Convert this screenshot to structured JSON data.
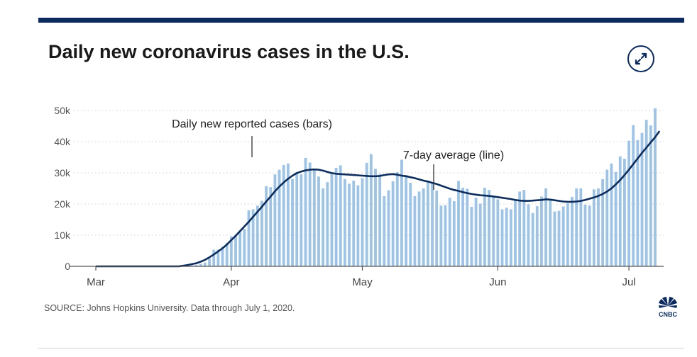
{
  "header": {
    "title": "Daily new coronavirus cases in the U.S."
  },
  "footer": {
    "source": "SOURCE: Johns Hopkins University. Data through July 1, 2020.",
    "logo_text": "CNBC"
  },
  "icons": {
    "expand": "expand-icon",
    "logo": "peacock-icon"
  },
  "colors": {
    "accent": "#0b2a5e",
    "bar": "#9dc3e6",
    "line": "#0d2d5c",
    "axis": "#555555"
  },
  "chart_data": {
    "type": "bar",
    "title": "Daily new coronavirus cases in the U.S.",
    "xlabel": "",
    "ylabel": "",
    "ylim": [
      0,
      50000
    ],
    "x_tick_labels": [
      "Mar",
      "Apr",
      "May",
      "Jun",
      "Jul"
    ],
    "y_tick_labels": [
      "0",
      "10k",
      "20k",
      "30k",
      "40k",
      "50k"
    ],
    "y_ticks": [
      0,
      10000,
      20000,
      30000,
      40000,
      50000
    ],
    "annotations": [
      "Daily new reported cases (bars)",
      "7-day average (line)"
    ],
    "series": [
      {
        "type": "bar",
        "values": [
          0,
          0,
          0,
          0,
          0,
          0,
          0,
          0,
          0,
          0,
          0,
          0,
          0,
          0,
          0,
          0,
          0,
          0,
          0,
          0,
          100,
          200,
          300,
          500,
          800,
          1200,
          2500,
          5300,
          5400,
          6300,
          7500,
          9600,
          9900,
          11000,
          12000,
          18000,
          18300,
          19500,
          21000,
          25700,
          25400,
          29500,
          31000,
          32500,
          33000,
          28000,
          30200,
          29500,
          34800,
          33300,
          31000,
          28800,
          25000,
          27000,
          29700,
          31600,
          32400,
          28000,
          26500,
          27500,
          26000,
          28300,
          33200,
          36000,
          31300,
          29600,
          22500,
          24400,
          27300,
          30200,
          34200,
          29300,
          26800,
          22500,
          24000,
          25000,
          27500,
          26800,
          24300,
          19500,
          19600,
          22000,
          20900,
          27400,
          25200,
          24900,
          19100,
          22000,
          20100,
          25200,
          24500,
          22700,
          21500,
          18300,
          18800,
          18300,
          21000,
          24000,
          24500,
          19900,
          17100,
          19300,
          22400,
          25000,
          21600,
          17600,
          17800,
          19200,
          20200,
          22300,
          25000,
          25000,
          19800,
          19500,
          24700,
          25000,
          28000,
          31000,
          33000,
          30300,
          35300,
          34500,
          40300,
          45300,
          40500,
          42800,
          47000,
          45200,
          50700
        ]
      },
      {
        "type": "line",
        "values": [
          0,
          0,
          0,
          0,
          0,
          0,
          0,
          0,
          0,
          0,
          0,
          0,
          0,
          0,
          0,
          0,
          0,
          0,
          0,
          0,
          200,
          400,
          700,
          1000,
          1500,
          2100,
          2900,
          3800,
          4800,
          5800,
          7000,
          8400,
          9800,
          11300,
          12800,
          14300,
          15900,
          17500,
          19100,
          20800,
          22400,
          24100,
          25600,
          26900,
          28100,
          29100,
          29900,
          30400,
          30800,
          31000,
          31100,
          31000,
          30700,
          30300,
          29900,
          29700,
          29600,
          29500,
          29400,
          29300,
          29200,
          29100,
          29000,
          28900,
          28900,
          29000,
          29300,
          29500,
          29600,
          29400,
          29100,
          28900,
          28600,
          28300,
          27900,
          27500,
          27200,
          26800,
          26400,
          25900,
          25400,
          24900,
          24500,
          24200,
          23800,
          23500,
          23200,
          23000,
          22800,
          22700,
          22600,
          22400,
          22200,
          22000,
          21800,
          21600,
          21300,
          21100,
          21000,
          21000,
          21100,
          21200,
          21300,
          21500,
          21400,
          21200,
          21000,
          20800,
          20700,
          20700,
          20800,
          21000,
          21300,
          21700,
          22100,
          22600,
          23200,
          24000,
          25000,
          26300,
          27700,
          29300,
          31000,
          32800,
          34600,
          36400,
          38100,
          39800,
          41400,
          43400
        ]
      }
    ]
  }
}
